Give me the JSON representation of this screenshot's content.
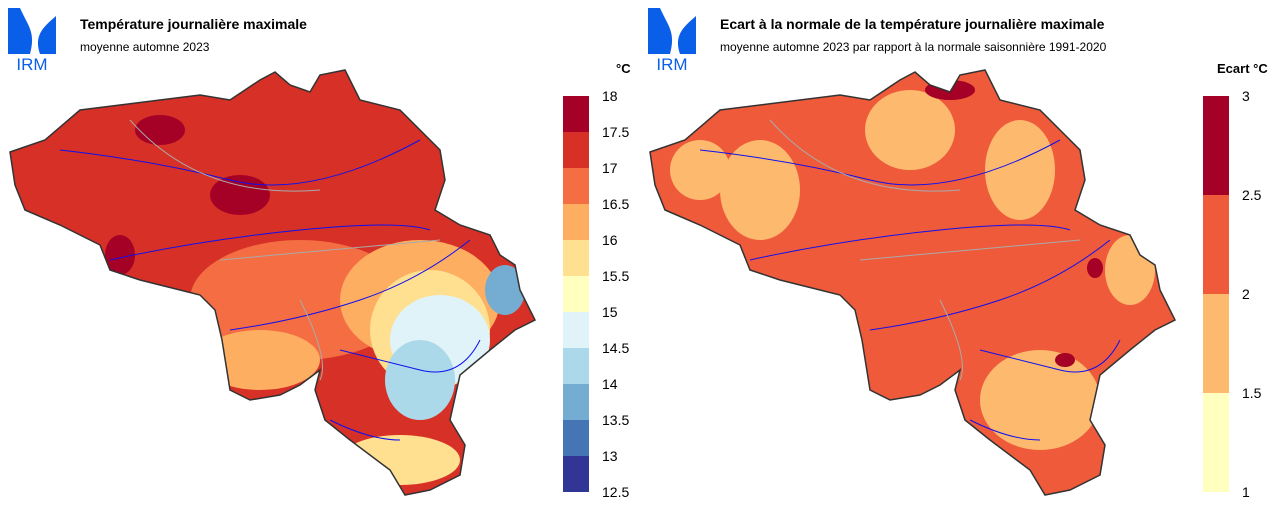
{
  "left": {
    "logo_text": "IRM",
    "title": "Température journalière maximale",
    "subtitle": "moyenne automne 2023",
    "unit": "°C",
    "legend": {
      "ticks": [
        "18",
        "17.5",
        "17",
        "16.5",
        "16",
        "15.5",
        "15",
        "14.5",
        "14",
        "13.5",
        "13",
        "12.5"
      ],
      "colors": [
        "#a50026",
        "#d73027",
        "#f46d43",
        "#fdae61",
        "#fee090",
        "#ffffbf",
        "#e0f3f8",
        "#abd9e9",
        "#74add1",
        "#4575b4",
        "#313695"
      ]
    }
  },
  "right": {
    "logo_text": "IRM",
    "title": "Ecart à la normale de la température journalière maximale",
    "subtitle": "moyenne automne 2023 par rapport à la normale saisonnière 1991-2020",
    "unit": "Ecart °C",
    "legend": {
      "ticks": [
        "3",
        "2.5",
        "2",
        "1.5",
        "1"
      ],
      "colors": [
        "#a50026",
        "#ef5a3a",
        "#fdba6f",
        "#ffffc0"
      ]
    }
  }
}
